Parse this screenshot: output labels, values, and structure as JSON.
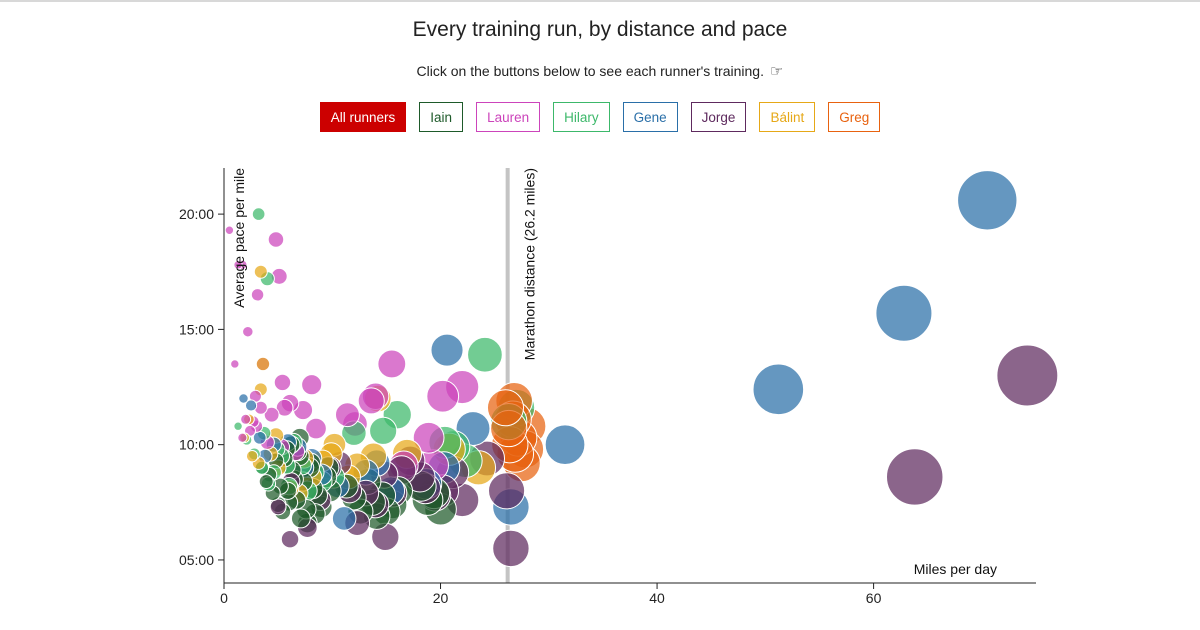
{
  "title": "Every training run, by distance and pace",
  "subtitle": "Click on the buttons below to see each runner's training.",
  "subtitle_icon": "pointing-hand-icon",
  "buttons": [
    {
      "label": "All runners",
      "color": "#cc0000",
      "active": true
    },
    {
      "label": "Iain",
      "color": "#1e5a2a",
      "active": false
    },
    {
      "label": "Lauren",
      "color": "#cc44bb",
      "active": false
    },
    {
      "label": "Hilary",
      "color": "#3cb86a",
      "active": false
    },
    {
      "label": "Gene",
      "color": "#2a6fa8",
      "active": false
    },
    {
      "label": "Jorge",
      "color": "#5e2a5e",
      "active": false
    },
    {
      "label": "Bálint",
      "color": "#e6a817",
      "active": false
    },
    {
      "label": "Greg",
      "color": "#e8620f",
      "active": false
    }
  ],
  "chart_data": {
    "type": "scatter",
    "xlabel": "Miles per day",
    "ylabel": "Average pace per mile",
    "xlim": [
      0,
      75
    ],
    "ylim": [
      4,
      22
    ],
    "x_ticks": [
      0,
      20,
      40,
      60
    ],
    "x_tick_labels": [
      "0",
      "20",
      "40",
      "60"
    ],
    "y_ticks": [
      5,
      10,
      15,
      20
    ],
    "y_tick_labels": [
      "05:00",
      "10:00",
      "15:00",
      "20:00"
    ],
    "annotation": {
      "x": 26.2,
      "label": "Marathon distance (26.2 miles)"
    },
    "size_encodes": "distance",
    "series": [
      {
        "name": "Iain",
        "color": "#1e5a2a",
        "points": [
          [
            3.5,
            9.0
          ],
          [
            4.2,
            8.7
          ],
          [
            4.8,
            9.3
          ],
          [
            5.2,
            8.2
          ],
          [
            5.6,
            9.4
          ],
          [
            5.9,
            8.0
          ],
          [
            6.3,
            8.9
          ],
          [
            6.7,
            7.6
          ],
          [
            7.0,
            9.5
          ],
          [
            7.3,
            8.4
          ],
          [
            7.6,
            7.2
          ],
          [
            7.9,
            9.0
          ],
          [
            8.2,
            8.1
          ],
          [
            8.6,
            7.8
          ],
          [
            9.0,
            7.3
          ],
          [
            9.4,
            8.6
          ],
          [
            9.8,
            8.0
          ],
          [
            4.5,
            7.9
          ],
          [
            5.0,
            7.4
          ],
          [
            5.4,
            7.1
          ],
          [
            6.0,
            7.5
          ],
          [
            6.5,
            8.5
          ],
          [
            7.1,
            6.8
          ],
          [
            7.7,
            6.6
          ],
          [
            8.4,
            7.0
          ],
          [
            6.8,
            9.7
          ],
          [
            5.8,
            9.8
          ],
          [
            11.3,
            8.2
          ],
          [
            12.0,
            7.7
          ],
          [
            13.3,
            8.4
          ],
          [
            13.7,
            7.5
          ],
          [
            14.1,
            6.9
          ],
          [
            14.6,
            7.8
          ],
          [
            15.0,
            7.1
          ],
          [
            15.6,
            7.4
          ],
          [
            16.1,
            8.0
          ],
          [
            18.2,
            8.2
          ],
          [
            18.8,
            7.6
          ],
          [
            19.4,
            7.9
          ],
          [
            20.0,
            7.2
          ],
          [
            6.2,
            10.0
          ],
          [
            7.0,
            10.3
          ],
          [
            8.0,
            9.2
          ],
          [
            9.6,
            9.0
          ],
          [
            12.6,
            7.1
          ],
          [
            3.9,
            8.4
          ]
        ]
      },
      {
        "name": "Lauren",
        "color": "#cc44bb",
        "points": [
          [
            0.5,
            19.3
          ],
          [
            1.3,
            17.8
          ],
          [
            1.7,
            17.8
          ],
          [
            2.2,
            14.9
          ],
          [
            3.1,
            16.5
          ],
          [
            4.8,
            18.9
          ],
          [
            5.1,
            17.3
          ],
          [
            1.0,
            13.5
          ],
          [
            3.6,
            13.5
          ],
          [
            5.4,
            12.7
          ],
          [
            8.1,
            12.6
          ],
          [
            2.0,
            11.1
          ],
          [
            2.7,
            11.0
          ],
          [
            3.4,
            11.6
          ],
          [
            4.4,
            11.3
          ],
          [
            5.6,
            11.6
          ],
          [
            6.1,
            11.8
          ],
          [
            7.3,
            11.5
          ],
          [
            1.7,
            10.3
          ],
          [
            2.4,
            10.6
          ],
          [
            3.0,
            10.8
          ],
          [
            4.0,
            10.1
          ],
          [
            5.3,
            9.9
          ],
          [
            6.6,
            9.7
          ],
          [
            8.5,
            10.7
          ],
          [
            11.4,
            11.3
          ],
          [
            13.6,
            11.9
          ],
          [
            14.0,
            12.1
          ],
          [
            15.5,
            13.5
          ],
          [
            18.9,
            10.3
          ],
          [
            20.2,
            12.1
          ],
          [
            22.0,
            12.5
          ],
          [
            19.3,
            9.1
          ],
          [
            16.6,
            9.1
          ],
          [
            12.1,
            10.9
          ],
          [
            2.9,
            12.1
          ]
        ]
      },
      {
        "name": "Hilary",
        "color": "#3cb86a",
        "points": [
          [
            3.2,
            20.0
          ],
          [
            4.0,
            17.2
          ],
          [
            1.3,
            10.8
          ],
          [
            2.1,
            10.2
          ],
          [
            2.8,
            9.6
          ],
          [
            3.5,
            9.0
          ],
          [
            4.1,
            8.3
          ],
          [
            4.6,
            8.8
          ],
          [
            5.3,
            9.5
          ],
          [
            6.0,
            8.2
          ],
          [
            6.4,
            10.1
          ],
          [
            7.2,
            9.1
          ],
          [
            7.7,
            8.0
          ],
          [
            8.3,
            8.8
          ],
          [
            9.0,
            8.4
          ],
          [
            10.1,
            8.6
          ],
          [
            12.0,
            10.5
          ],
          [
            14.7,
            10.6
          ],
          [
            16.0,
            11.3
          ],
          [
            20.4,
            10.1
          ],
          [
            21.2,
            9.9
          ],
          [
            22.3,
            9.3
          ],
          [
            24.1,
            13.9
          ],
          [
            26.3,
            11.0
          ],
          [
            27.0,
            11.6
          ],
          [
            3.7,
            10.5
          ],
          [
            4.9,
            9.8
          ],
          [
            5.8,
            9.1
          ]
        ]
      },
      {
        "name": "Gene",
        "color": "#2a6fa8",
        "points": [
          [
            1.8,
            12.0
          ],
          [
            2.5,
            11.7
          ],
          [
            3.3,
            10.3
          ],
          [
            3.8,
            9.5
          ],
          [
            4.6,
            10.0
          ],
          [
            5.9,
            10.1
          ],
          [
            6.8,
            9.9
          ],
          [
            7.4,
            9.0
          ],
          [
            8.1,
            9.4
          ],
          [
            9.0,
            8.7
          ],
          [
            10.5,
            8.2
          ],
          [
            11.1,
            6.8
          ],
          [
            13.1,
            8.8
          ],
          [
            14.1,
            9.2
          ],
          [
            15.4,
            8.0
          ],
          [
            18.7,
            8.3
          ],
          [
            20.3,
            9.0
          ],
          [
            20.6,
            14.1
          ],
          [
            23.0,
            10.7
          ],
          [
            26.5,
            7.3
          ],
          [
            31.5,
            10.0
          ],
          [
            51.2,
            12.4
          ],
          [
            62.8,
            15.7
          ],
          [
            70.5,
            20.6
          ]
        ]
      },
      {
        "name": "Jorge",
        "color": "#5e2a5e",
        "points": [
          [
            5.0,
            7.3
          ],
          [
            6.2,
            8.4
          ],
          [
            7.7,
            6.4
          ],
          [
            8.9,
            7.6
          ],
          [
            9.8,
            9.0
          ],
          [
            10.7,
            9.2
          ],
          [
            11.6,
            8.0
          ],
          [
            12.3,
            6.6
          ],
          [
            13.1,
            7.9
          ],
          [
            14.0,
            7.4
          ],
          [
            14.8,
            8.7
          ],
          [
            15.6,
            7.9
          ],
          [
            16.4,
            8.9
          ],
          [
            17.2,
            9.3
          ],
          [
            18.1,
            8.6
          ],
          [
            18.6,
            8.1
          ],
          [
            19.5,
            7.8
          ],
          [
            20.2,
            8.0
          ],
          [
            21.1,
            8.8
          ],
          [
            22.0,
            7.6
          ],
          [
            24.3,
            9.4
          ],
          [
            26.1,
            8.0
          ],
          [
            26.5,
            5.5
          ],
          [
            14.9,
            6.0
          ],
          [
            6.1,
            5.9
          ],
          [
            63.8,
            8.6
          ],
          [
            74.2,
            13.0
          ]
        ]
      },
      {
        "name": "Bálint",
        "color": "#e6a817",
        "points": [
          [
            3.4,
            17.5
          ],
          [
            3.6,
            13.5
          ],
          [
            3.4,
            12.4
          ],
          [
            1.9,
            10.3
          ],
          [
            2.6,
            9.5
          ],
          [
            3.2,
            9.2
          ],
          [
            4.3,
            9.6
          ],
          [
            5.0,
            9.0
          ],
          [
            6.1,
            8.1
          ],
          [
            7.4,
            9.4
          ],
          [
            8.1,
            8.6
          ],
          [
            9.1,
            9.3
          ],
          [
            9.9,
            9.6
          ],
          [
            10.2,
            10.0
          ],
          [
            12.3,
            9.1
          ],
          [
            13.8,
            9.5
          ],
          [
            14.2,
            12.0
          ],
          [
            16.9,
            9.6
          ],
          [
            20.8,
            9.8
          ],
          [
            23.5,
            9.0
          ],
          [
            2.3,
            11.1
          ],
          [
            4.8,
            10.4
          ],
          [
            6.9,
            7.9
          ],
          [
            11.5,
            8.6
          ]
        ]
      },
      {
        "name": "Greg",
        "color": "#e8620f",
        "points": [
          [
            26.0,
            11.6
          ],
          [
            26.3,
            10.7
          ],
          [
            26.7,
            11.1
          ],
          [
            27.2,
            10.3
          ],
          [
            27.8,
            9.8
          ],
          [
            26.9,
            9.6
          ],
          [
            27.5,
            9.2
          ],
          [
            26.4,
            10.0
          ],
          [
            28.0,
            10.8
          ],
          [
            26.8,
            11.9
          ]
        ]
      }
    ]
  }
}
